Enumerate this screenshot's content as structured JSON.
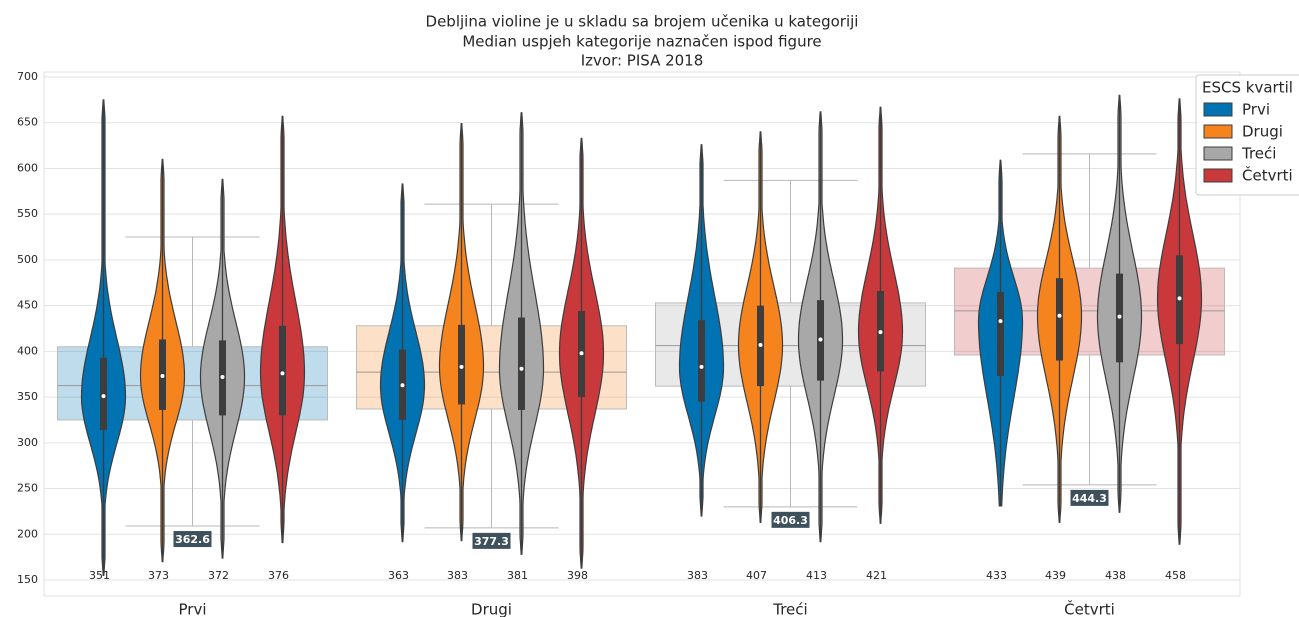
{
  "chart_data": {
    "type": "violin",
    "title": [
      "Debljina violine je u skladu sa brojem učenika u kategoriji",
      "Median uspjeh kategorije naznačen ispod figure",
      "Izvor: PISA 2018"
    ],
    "categories": [
      "Prvi",
      "Drugi",
      "Treći",
      "Četvrti"
    ],
    "legend_title": "ESCS kvartil",
    "ylim": [
      150,
      700
    ],
    "yticks": [
      150,
      200,
      250,
      300,
      350,
      400,
      450,
      500,
      550,
      600,
      650,
      700
    ],
    "grid": true,
    "group_boxes": {
      "medians": [
        362.6,
        377.3,
        406.3,
        444.3
      ],
      "q1": [
        325,
        337,
        362,
        396
      ],
      "q3": [
        405,
        428,
        453,
        491
      ],
      "whislo": [
        209,
        207,
        230,
        254
      ],
      "whishi": [
        525,
        561,
        587,
        616
      ]
    },
    "series": [
      {
        "name": "Prvi",
        "color": "#0173b2",
        "medians": [
          351,
          363,
          383,
          433
        ],
        "q1": [
          314,
          325,
          345,
          373
        ],
        "q3": [
          393,
          402,
          434,
          465
        ],
        "min": [
          155,
          192,
          220,
          231
        ],
        "max": [
          675,
          583,
          626,
          609
        ]
      },
      {
        "name": "Drugi",
        "color": "#f5841f",
        "medians": [
          373,
          383,
          407,
          439
        ],
        "q1": [
          336,
          342,
          362,
          390
        ],
        "q3": [
          413,
          429,
          450,
          480
        ],
        "min": [
          170,
          193,
          213,
          213
        ],
        "max": [
          610,
          649,
          640,
          657
        ]
      },
      {
        "name": "Treći",
        "color": "#a8a8a8",
        "medians": [
          372,
          381,
          413,
          438
        ],
        "q1": [
          330,
          336,
          368,
          388
        ],
        "q3": [
          412,
          437,
          456,
          485
        ],
        "min": [
          174,
          178,
          192,
          224
        ],
        "max": [
          588,
          661,
          662,
          680
        ]
      },
      {
        "name": "Četvrti",
        "color": "#c9393b",
        "medians": [
          376,
          398,
          421,
          458
        ],
        "q1": [
          330,
          350,
          378,
          408
        ],
        "q3": [
          428,
          444,
          466,
          505
        ],
        "min": [
          191,
          163,
          212,
          189
        ],
        "max": [
          657,
          633,
          667,
          676
        ]
      }
    ]
  }
}
